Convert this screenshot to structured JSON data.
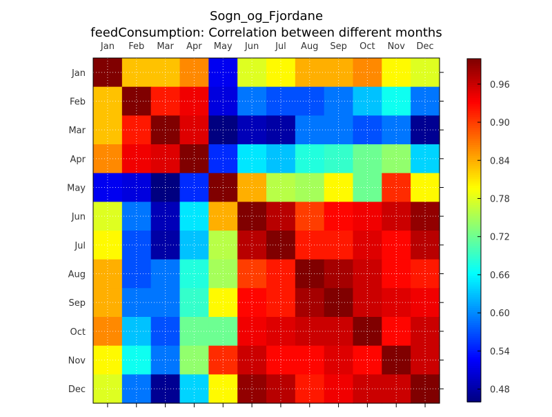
{
  "chart_data": {
    "type": "heatmap",
    "title": "Sogn_og_Fjordane",
    "subtitle": "feedConsumption: Correlation between different months",
    "x_categories": [
      "Jan",
      "Feb",
      "Mar",
      "Apr",
      "May",
      "Jun",
      "Jul",
      "Aug",
      "Sep",
      "Oct",
      "Nov",
      "Dec"
    ],
    "y_categories": [
      "Jan",
      "Feb",
      "Mar",
      "Apr",
      "May",
      "Jun",
      "Jul",
      "Aug",
      "Sep",
      "Oct",
      "Nov",
      "Dec"
    ],
    "colormap": "jet",
    "value_range": [
      0.46,
      1.0
    ],
    "colorbar_ticks": [
      "0.48",
      "0.54",
      "0.60",
      "0.66",
      "0.72",
      "0.78",
      "0.84",
      "0.90",
      "0.96"
    ],
    "grid": true,
    "values": [
      [
        1.0,
        0.83,
        0.83,
        0.86,
        0.52,
        0.78,
        0.8,
        0.84,
        0.84,
        0.86,
        0.8,
        0.78
      ],
      [
        0.83,
        1.0,
        0.92,
        0.94,
        0.51,
        0.59,
        0.57,
        0.57,
        0.59,
        0.63,
        0.67,
        0.59
      ],
      [
        0.83,
        0.92,
        1.0,
        0.95,
        0.46,
        0.49,
        0.48,
        0.59,
        0.59,
        0.57,
        0.59,
        0.47
      ],
      [
        0.86,
        0.94,
        0.95,
        1.0,
        0.55,
        0.65,
        0.63,
        0.68,
        0.69,
        0.72,
        0.74,
        0.64
      ],
      [
        0.52,
        0.51,
        0.46,
        0.55,
        1.0,
        0.84,
        0.76,
        0.75,
        0.8,
        0.72,
        0.91,
        0.8
      ],
      [
        0.78,
        0.59,
        0.49,
        0.65,
        0.84,
        1.0,
        0.97,
        0.9,
        0.93,
        0.94,
        0.96,
        0.99
      ],
      [
        0.8,
        0.57,
        0.48,
        0.63,
        0.76,
        0.97,
        1.0,
        0.92,
        0.92,
        0.95,
        0.93,
        0.97
      ],
      [
        0.84,
        0.57,
        0.59,
        0.68,
        0.75,
        0.9,
        0.92,
        1.0,
        0.98,
        0.96,
        0.93,
        0.92
      ],
      [
        0.84,
        0.59,
        0.59,
        0.69,
        0.8,
        0.93,
        0.92,
        0.98,
        1.0,
        0.96,
        0.95,
        0.94
      ],
      [
        0.86,
        0.63,
        0.57,
        0.72,
        0.72,
        0.94,
        0.95,
        0.96,
        0.96,
        1.0,
        0.93,
        0.96
      ],
      [
        0.8,
        0.67,
        0.59,
        0.74,
        0.91,
        0.96,
        0.93,
        0.93,
        0.95,
        0.93,
        1.0,
        0.96
      ],
      [
        0.78,
        0.59,
        0.47,
        0.64,
        0.8,
        0.99,
        0.97,
        0.92,
        0.94,
        0.96,
        0.96,
        1.0
      ]
    ]
  }
}
